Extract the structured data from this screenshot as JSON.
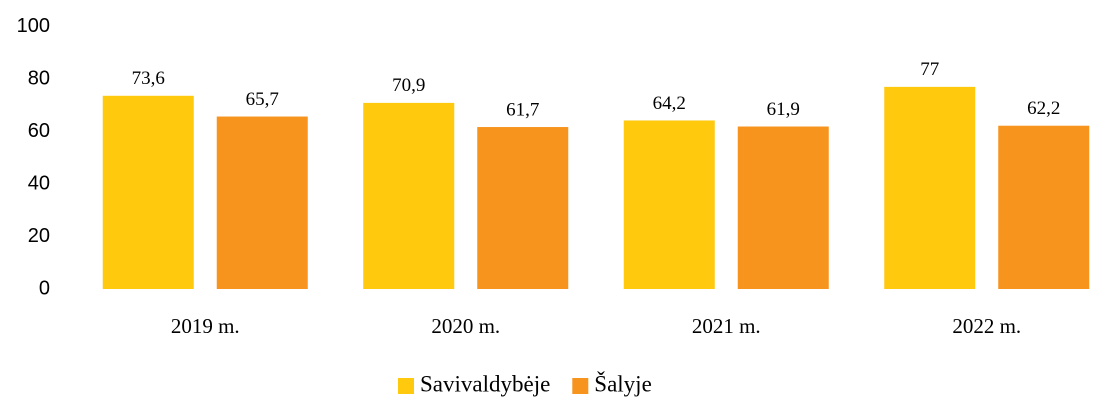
{
  "chart_data": {
    "type": "bar",
    "categories": [
      "2019 m.",
      "2020 m.",
      "2021 m.",
      "2022 m."
    ],
    "series": [
      {
        "name": "Savivaldybėje",
        "color": "#FFC90E",
        "values": [
          73.6,
          70.9,
          64.2,
          77
        ],
        "value_labels": [
          "73,6",
          "70,9",
          "64,2",
          "77"
        ]
      },
      {
        "name": "Šalyje",
        "color": "#F7941D",
        "values": [
          65.7,
          61.7,
          61.9,
          62.2
        ],
        "value_labels": [
          "65,7",
          "61,7",
          "61,9",
          "62,2"
        ]
      }
    ],
    "ylim": [
      0,
      100
    ],
    "yticks": [
      0,
      20,
      40,
      60,
      80,
      100
    ],
    "grid": false,
    "legend": "bottom"
  }
}
